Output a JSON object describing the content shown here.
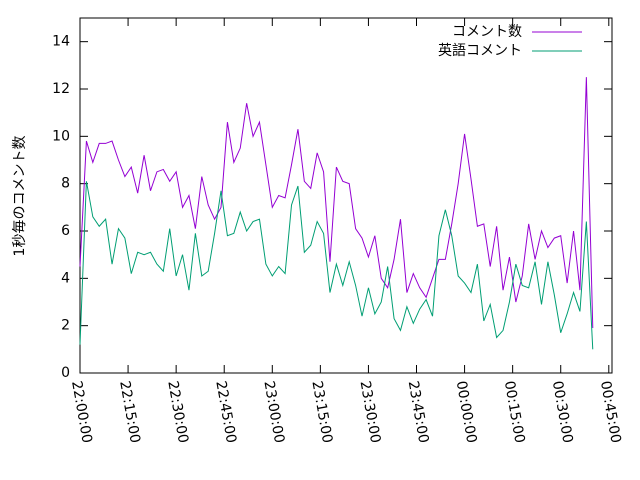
{
  "chart_data": {
    "type": "line",
    "ylabel": "1秒毎のコメント数",
    "x": [
      0,
      2,
      4,
      6,
      8,
      10,
      12,
      14,
      16,
      18,
      20,
      22,
      24,
      26,
      28,
      30,
      32,
      34,
      36,
      38,
      40,
      42,
      44,
      46,
      48,
      50,
      52,
      54,
      56,
      58,
      60,
      62,
      64,
      66,
      68,
      70,
      72,
      74,
      76,
      78,
      80,
      82,
      84,
      86,
      88,
      90,
      92,
      94,
      96,
      98,
      100,
      102,
      104,
      106,
      108,
      110,
      112,
      114,
      116,
      118,
      120,
      122,
      124,
      126,
      128,
      130,
      132,
      134,
      136,
      138,
      140,
      142,
      144,
      146,
      148,
      150,
      152,
      154,
      156,
      158,
      160
    ],
    "series": [
      {
        "name": "コメント数",
        "color": "#9400d3",
        "values": [
          4.5,
          9.8,
          8.9,
          9.7,
          9.7,
          9.8,
          9.0,
          8.3,
          8.7,
          7.6,
          9.2,
          7.7,
          8.5,
          8.6,
          8.1,
          8.5,
          7.0,
          7.5,
          6.1,
          8.3,
          7.1,
          6.5,
          7.0,
          10.6,
          8.9,
          9.5,
          11.4,
          10.0,
          10.6,
          8.8,
          7.0,
          7.5,
          7.4,
          8.8,
          10.3,
          8.1,
          7.8,
          9.3,
          8.5,
          4.7,
          8.7,
          8.1,
          8.0,
          6.1,
          5.7,
          4.9,
          5.8,
          4.0,
          3.6,
          4.8,
          6.5,
          3.4,
          4.2,
          3.6,
          3.2,
          4.0,
          4.8,
          4.8,
          6.3,
          8.0,
          10.1,
          8.2,
          6.2,
          6.3,
          4.5,
          6.2,
          3.5,
          4.9,
          3.0,
          4.1,
          6.3,
          4.8,
          6.0,
          5.3,
          5.7,
          5.8,
          3.8,
          6.0,
          3.5,
          12.5,
          1.9
        ]
      },
      {
        "name": "英語コメント",
        "color": "#009e73",
        "values": [
          1.2,
          8.1,
          6.6,
          6.2,
          6.5,
          4.6,
          6.1,
          5.7,
          4.2,
          5.1,
          5.0,
          5.1,
          4.6,
          4.3,
          6.1,
          4.1,
          5.0,
          3.5,
          5.9,
          4.1,
          4.3,
          5.9,
          7.7,
          5.8,
          5.9,
          6.8,
          6.0,
          6.4,
          6.5,
          4.6,
          4.1,
          4.5,
          4.2,
          7.1,
          7.9,
          5.1,
          5.4,
          6.4,
          5.9,
          3.4,
          4.6,
          3.7,
          4.7,
          3.7,
          2.4,
          3.6,
          2.5,
          3.0,
          4.5,
          2.3,
          1.8,
          2.8,
          2.1,
          2.7,
          3.1,
          2.4,
          5.8,
          6.9,
          5.8,
          4.1,
          3.8,
          3.4,
          4.6,
          2.2,
          2.9,
          1.5,
          1.8,
          3.0,
          4.6,
          3.7,
          3.6,
          4.7,
          2.9,
          4.7,
          3.3,
          1.7,
          2.5,
          3.4,
          2.6,
          6.4,
          1.0
        ]
      }
    ],
    "xlim": [
      0,
      166
    ],
    "xticks": [
      {
        "value": 0,
        "label": "22:00:00"
      },
      {
        "value": 15,
        "label": "22:15:00"
      },
      {
        "value": 30,
        "label": "22:30:00"
      },
      {
        "value": 45,
        "label": "22:45:00"
      },
      {
        "value": 60,
        "label": "23:00:00"
      },
      {
        "value": 75,
        "label": "23:15:00"
      },
      {
        "value": 90,
        "label": "23:30:00"
      },
      {
        "value": 105,
        "label": "23:45:00"
      },
      {
        "value": 120,
        "label": "00:00:00"
      },
      {
        "value": 135,
        "label": "00:15:00"
      },
      {
        "value": 150,
        "label": "00:30:00"
      },
      {
        "value": 165,
        "label": "00:45:00"
      }
    ],
    "ylim": [
      0,
      15
    ],
    "yticks": [
      0,
      2,
      4,
      6,
      8,
      10,
      12,
      14
    ],
    "legend": "top-right"
  }
}
